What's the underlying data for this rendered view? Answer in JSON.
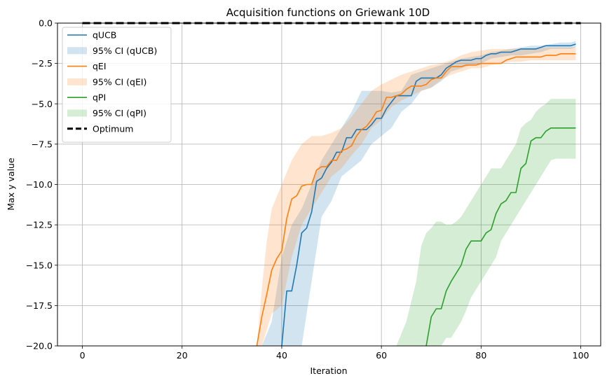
{
  "chart_data": {
    "type": "line",
    "title": "Acquisition functions on Griewank 10D",
    "xlabel": "Iteration",
    "ylabel": "Max y value",
    "xlim": [
      -5,
      104
    ],
    "ylim": [
      -20,
      0
    ],
    "xticks": [
      0,
      20,
      40,
      60,
      80,
      100
    ],
    "yticks": [
      0.0,
      -2.5,
      -5.0,
      -7.5,
      -10.0,
      -12.5,
      -15.0,
      -17.5,
      -20.0
    ],
    "xtick_labels": [
      "0",
      "20",
      "40",
      "60",
      "80",
      "100"
    ],
    "ytick_labels": [
      "0.0",
      "−2.5",
      "−5.0",
      "−7.5",
      "−10.0",
      "−12.5",
      "−15.0",
      "−17.5",
      "−20.0"
    ],
    "grid": true,
    "legend_position": "top-left",
    "optimum": {
      "name": "Optimum",
      "value": 0,
      "x": [
        0,
        100
      ],
      "color": "#000000"
    },
    "series": [
      {
        "name": "qUCB",
        "ci_name": "95% CI (qUCB)",
        "color": "#1f77b4",
        "x": [
          40,
          41,
          42,
          43,
          44,
          45,
          46,
          47,
          48,
          49,
          50,
          51,
          52,
          53,
          54,
          55,
          56,
          57,
          58,
          59,
          60,
          61,
          62,
          63,
          64,
          65,
          66,
          67,
          68,
          69,
          70,
          71,
          72,
          73,
          74,
          75,
          76,
          77,
          78,
          79,
          80,
          81,
          82,
          83,
          84,
          85,
          86,
          87,
          88,
          89,
          90,
          91,
          92,
          93,
          94,
          95,
          96,
          97,
          98,
          99
        ],
        "values": [
          -20,
          -16.6,
          -16.6,
          -15.0,
          -13.0,
          -12.7,
          -11.7,
          -9.8,
          -9.6,
          -9.0,
          -8.6,
          -8.0,
          -8.0,
          -7.1,
          -7.1,
          -6.6,
          -6.6,
          -6.6,
          -6.3,
          -5.9,
          -5.9,
          -5.3,
          -4.9,
          -4.5,
          -4.5,
          -4.5,
          -4.5,
          -3.6,
          -3.4,
          -3.4,
          -3.4,
          -3.4,
          -3.2,
          -2.8,
          -2.6,
          -2.4,
          -2.3,
          -2.3,
          -2.3,
          -2.2,
          -2.2,
          -2.0,
          -1.9,
          -1.9,
          -1.8,
          -1.8,
          -1.8,
          -1.7,
          -1.6,
          -1.6,
          -1.6,
          -1.6,
          -1.5,
          -1.4,
          -1.4,
          -1.4,
          -1.4,
          -1.4,
          -1.4,
          -1.3
        ],
        "ci_x": [
          36,
          38,
          40,
          42,
          44,
          46,
          48,
          50,
          52,
          54,
          56,
          58,
          60,
          62,
          64,
          66,
          68,
          70,
          72,
          74,
          76,
          78,
          80,
          82,
          84,
          86,
          88,
          90,
          92,
          94,
          96,
          98,
          99
        ],
        "ci_upper": [
          -20,
          -18.5,
          -14.5,
          -12.5,
          -11.5,
          -10.0,
          -8.5,
          -7.5,
          -6.5,
          -5.5,
          -4.2,
          -4.2,
          -4.2,
          -4.3,
          -4.2,
          -3.2,
          -3.0,
          -2.8,
          -2.6,
          -2.4,
          -2.2,
          -2.1,
          -2.0,
          -1.8,
          -1.7,
          -1.6,
          -1.5,
          -1.4,
          -1.4,
          -1.3,
          -1.2,
          -1.2,
          -1.1
        ],
        "ci_lower": [
          -20,
          -20,
          -20,
          -20,
          -20,
          -16.0,
          -12.0,
          -11.0,
          -9.5,
          -9.0,
          -8.5,
          -7.5,
          -7.0,
          -6.5,
          -5.5,
          -5.0,
          -4.2,
          -4.0,
          -3.6,
          -3.0,
          -2.8,
          -2.6,
          -2.5,
          -2.2,
          -2.1,
          -2.0,
          -2.0,
          -1.9,
          -1.8,
          -1.6,
          -1.6,
          -1.6,
          -1.5
        ]
      },
      {
        "name": "qEI",
        "ci_name": "95% CI (qEI)",
        "color": "#ff7f0e",
        "x": [
          35,
          36,
          37,
          38,
          39,
          40,
          41,
          42,
          43,
          44,
          45,
          46,
          47,
          48,
          49,
          50,
          51,
          52,
          53,
          54,
          55,
          56,
          57,
          58,
          59,
          60,
          61,
          62,
          63,
          64,
          65,
          66,
          67,
          68,
          69,
          70,
          71,
          72,
          73,
          74,
          75,
          76,
          77,
          78,
          79,
          80,
          81,
          82,
          83,
          84,
          85,
          86,
          87,
          88,
          89,
          90,
          91,
          92,
          93,
          94,
          95,
          96,
          97,
          98,
          99
        ],
        "values": [
          -20,
          -18.2,
          -16.8,
          -15.3,
          -14.6,
          -14.1,
          -12.1,
          -10.9,
          -10.7,
          -10.1,
          -10.0,
          -10.0,
          -9.1,
          -8.9,
          -8.9,
          -8.5,
          -8.5,
          -7.9,
          -7.8,
          -7.6,
          -7.0,
          -6.6,
          -6.4,
          -6.0,
          -5.5,
          -5.4,
          -4.6,
          -4.6,
          -4.5,
          -4.4,
          -4.1,
          -3.9,
          -3.9,
          -3.9,
          -3.8,
          -3.5,
          -3.4,
          -3.4,
          -3.0,
          -2.7,
          -2.7,
          -2.7,
          -2.6,
          -2.6,
          -2.6,
          -2.5,
          -2.5,
          -2.5,
          -2.5,
          -2.5,
          -2.3,
          -2.2,
          -2.1,
          -2.1,
          -2.1,
          -2.1,
          -2.1,
          -2.1,
          -2.0,
          -2.0,
          -2.0,
          -1.9,
          -1.9,
          -1.9,
          -1.9
        ],
        "ci_x": [
          35,
          36,
          37,
          38,
          40,
          42,
          44,
          46,
          48,
          50,
          52,
          54,
          56,
          58,
          60,
          62,
          64,
          66,
          68,
          70,
          72,
          74,
          76,
          78,
          80,
          82,
          84,
          86,
          88,
          90,
          92,
          94,
          96,
          98,
          99
        ],
        "ci_upper": [
          -20,
          -16.5,
          -13.5,
          -11.5,
          -10.0,
          -8.5,
          -7.5,
          -7.0,
          -7.0,
          -6.8,
          -6.5,
          -5.8,
          -5.0,
          -4.2,
          -3.8,
          -3.5,
          -3.2,
          -3.0,
          -2.8,
          -2.6,
          -2.5,
          -2.3,
          -2.0,
          -1.8,
          -1.7,
          -1.6,
          -1.6,
          -1.6,
          -1.6,
          -1.6,
          -1.5,
          -1.5,
          -1.5,
          -1.5,
          -1.5
        ],
        "ci_lower": [
          -20,
          -20,
          -19.0,
          -18.0,
          -17.5,
          -14.5,
          -12.5,
          -11.5,
          -10.5,
          -9.5,
          -9.0,
          -8.2,
          -7.5,
          -6.5,
          -6.0,
          -5.2,
          -4.8,
          -4.5,
          -4.2,
          -4.0,
          -3.5,
          -3.2,
          -3.0,
          -2.8,
          -2.8,
          -2.6,
          -2.5,
          -2.4,
          -2.4,
          -2.3,
          -2.3,
          -2.3,
          -2.3,
          -2.3,
          -2.3
        ]
      },
      {
        "name": "qPI",
        "ci_name": "95% CI (qPI)",
        "color": "#2ca02c",
        "x": [
          69,
          70,
          71,
          72,
          73,
          74,
          75,
          76,
          77,
          78,
          79,
          80,
          81,
          82,
          83,
          84,
          85,
          86,
          87,
          88,
          89,
          90,
          91,
          92,
          93,
          94,
          95,
          96,
          97,
          98,
          99
        ],
        "values": [
          -20,
          -18.2,
          -17.7,
          -17.7,
          -16.6,
          -16.0,
          -15.5,
          -15.0,
          -14.0,
          -13.5,
          -13.5,
          -13.5,
          -13.0,
          -12.8,
          -11.8,
          -11.2,
          -11.0,
          -10.5,
          -10.5,
          -9.0,
          -8.7,
          -7.3,
          -7.1,
          -7.1,
          -6.7,
          -6.5,
          -6.5,
          -6.5,
          -6.5,
          -6.5,
          -6.5
        ],
        "ci_x": [
          63,
          65,
          67,
          68,
          69,
          70,
          71,
          72,
          73,
          74,
          75,
          76,
          77,
          78,
          79,
          80,
          81,
          82,
          83,
          84,
          85,
          86,
          87,
          88,
          89,
          90,
          91,
          92,
          93,
          94,
          95,
          96,
          97,
          98,
          99
        ],
        "ci_upper": [
          -20,
          -18.5,
          -16.0,
          -13.8,
          -13.0,
          -12.7,
          -12.3,
          -12.3,
          -12.5,
          -12.5,
          -12.3,
          -12.0,
          -11.5,
          -11.0,
          -10.5,
          -10.0,
          -9.5,
          -9.0,
          -9.0,
          -9.0,
          -8.5,
          -8.0,
          -7.5,
          -6.5,
          -6.2,
          -6.0,
          -5.5,
          -5.2,
          -5.0,
          -4.7,
          -4.7,
          -4.7,
          -4.7,
          -4.7,
          -4.7
        ],
        "ci_lower": [
          -20,
          -20,
          -20,
          -20,
          -20,
          -20,
          -20,
          -20,
          -19.5,
          -19.5,
          -19.0,
          -18.5,
          -17.8,
          -17.0,
          -16.5,
          -16.0,
          -15.5,
          -15.0,
          -14.5,
          -13.5,
          -13.0,
          -12.5,
          -12.0,
          -11.5,
          -11.0,
          -10.5,
          -10.0,
          -9.5,
          -9.0,
          -8.5,
          -8.4,
          -8.4,
          -8.4,
          -8.4,
          -8.4
        ]
      }
    ]
  }
}
